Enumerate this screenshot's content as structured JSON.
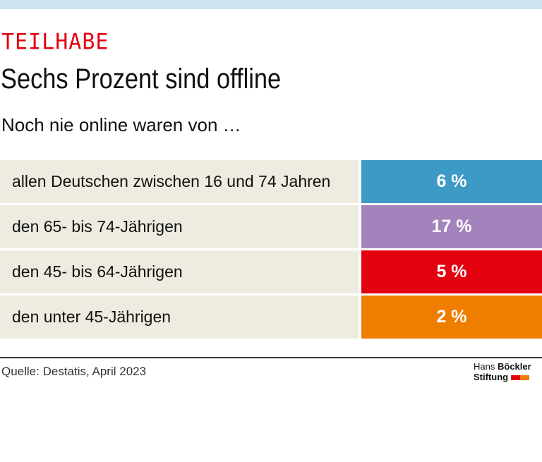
{
  "kicker": "TEILHABE",
  "title": "Sechs Prozent sind offline",
  "subtitle": "Noch nie online waren von …",
  "chart_data": {
    "type": "table",
    "rows": [
      {
        "label": "allen Deutschen zwischen 16 und 74 Jahren",
        "value": 6,
        "display": "6 %",
        "color": "#3d9ac4"
      },
      {
        "label": "den 65- bis 74-Jährigen",
        "value": 17,
        "display": "17 %",
        "color": "#a383bb"
      },
      {
        "label": "den 45- bis 64-Jährigen",
        "value": 5,
        "display": "5 %",
        "color": "#e3000f"
      },
      {
        "label": "den unter 45-Jährigen",
        "value": 2,
        "display": "2 %",
        "color": "#ef7d00"
      }
    ]
  },
  "source": "Quelle: Destatis, April 2023",
  "logo": {
    "line1a": "Hans",
    "line1b": "Böckler",
    "line2": "Stiftung",
    "colors": [
      "#e3000f",
      "#ef7d00"
    ]
  }
}
